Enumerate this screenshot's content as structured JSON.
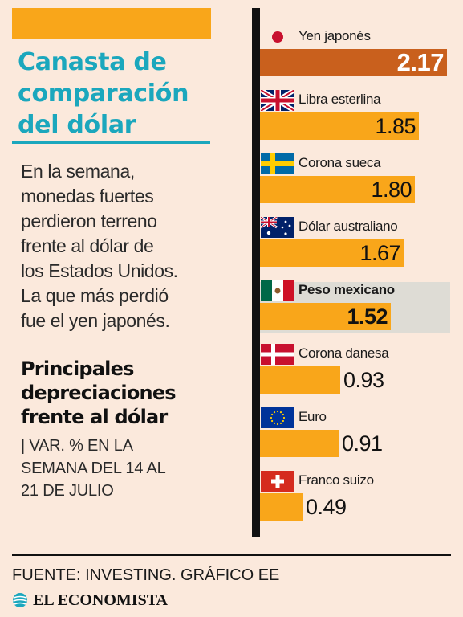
{
  "header": {
    "title_lines": [
      "Canasta de",
      "comparación",
      "del dólar"
    ],
    "intro_lines": [
      "En la semana,",
      "monedas fuertes",
      "perdieron terreno",
      "frente al dólar de",
      "los Estados Unidos.",
      "La que más perdió",
      "fue el yen japonés."
    ],
    "subtitle_lines": [
      "Principales",
      "depreciaciones",
      "frente al dólar"
    ],
    "unit_lines": [
      "| VAR. % EN LA",
      "SEMANA DEL 14 AL",
      "21 DE JULIO"
    ]
  },
  "footer": {
    "source": "FUENTE: INVESTING.  GRÁFICO EE",
    "logo_text": "EL ECONOMISTA"
  },
  "colors": {
    "background": "#fbe9dc",
    "accent_teal": "#1ba7bd",
    "bar_orange": "#f9a61a",
    "bar_top": "#c9601d",
    "highlight": "#dedcd5"
  },
  "chart_data": {
    "type": "bar",
    "orientation": "horizontal",
    "categories": [
      "Yen japonés",
      "Libra esterlina",
      "Corona sueca",
      "Dólar australiano",
      "Peso mexicano",
      "Corona danesa",
      "Euro",
      "Franco suizo"
    ],
    "values": [
      2.17,
      1.85,
      1.8,
      1.67,
      1.52,
      0.93,
      0.91,
      0.49
    ],
    "value_labels": [
      "2.17",
      "1.85",
      "1.80",
      "1.67",
      "1.52",
      "0.93",
      "0.91",
      "0.49"
    ],
    "flags": [
      "japan-flag",
      "uk-flag",
      "sweden-flag",
      "australia-flag",
      "mexico-flag",
      "denmark-flag",
      "eu-flag",
      "switzerland-flag"
    ],
    "highlighted": "Peso mexicano",
    "xlim": [
      0,
      2.2
    ],
    "grid": false,
    "legend": "none"
  }
}
